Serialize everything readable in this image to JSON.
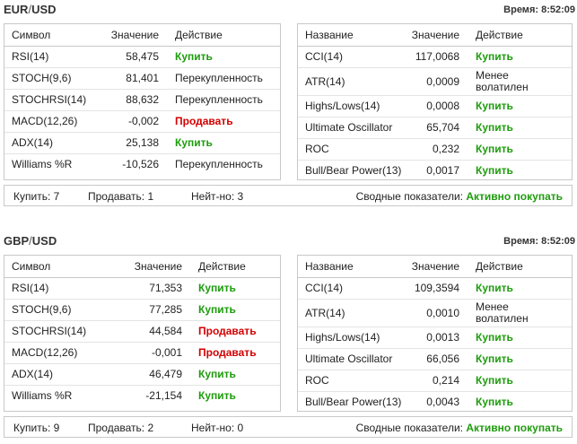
{
  "blocks": [
    {
      "pair_base": "EUR",
      "pair_quote": "USD",
      "time_label": "Время: 8:52:09",
      "left_headers": [
        "Символ",
        "Значение",
        "Действие"
      ],
      "left_rows": [
        {
          "name": "RSI(14)",
          "value": "58,475",
          "action": "Купить",
          "kind": "buy"
        },
        {
          "name": "STOCH(9,6)",
          "value": "81,401",
          "action": "Перекупленность",
          "kind": "neutral"
        },
        {
          "name": "STOCHRSI(14)",
          "value": "88,632",
          "action": "Перекупленность",
          "kind": "neutral"
        },
        {
          "name": "MACD(12,26)",
          "value": "-0,002",
          "action": "Продавать",
          "kind": "sell"
        },
        {
          "name": "ADX(14)",
          "value": "25,138",
          "action": "Купить",
          "kind": "buy"
        },
        {
          "name": "Williams %R",
          "value": "-10,526",
          "action": "Перекупленность",
          "kind": "neutral"
        }
      ],
      "right_headers": [
        "Название",
        "Значение",
        "Действие"
      ],
      "right_rows": [
        {
          "name": "CCI(14)",
          "value": "117,0068",
          "action": "Купить",
          "kind": "buy"
        },
        {
          "name": "ATR(14)",
          "value": "0,0009",
          "action_line1": "Менее",
          "action_line2": "волатилен",
          "kind": "lowvol"
        },
        {
          "name": "Highs/Lows(14)",
          "value": "0,0008",
          "action": "Купить",
          "kind": "buy"
        },
        {
          "name": "Ultimate Oscillator",
          "value": "65,704",
          "action": "Купить",
          "kind": "buy"
        },
        {
          "name": "ROC",
          "value": "0,232",
          "action": "Купить",
          "kind": "buy"
        },
        {
          "name": "Bull/Bear Power(13)",
          "value": "0,0017",
          "action": "Купить",
          "kind": "buy"
        }
      ],
      "summary": {
        "buy": "Купить: 7",
        "sell": "Продавать: 1",
        "neutral": "Нейт-но: 3",
        "total_label": "Сводные показатели:",
        "total_value": "Активно покупать"
      }
    },
    {
      "pair_base": "GBP",
      "pair_quote": "USD",
      "time_label": "Время: 8:52:09",
      "left_headers": [
        "Символ",
        "Значение",
        "Действие"
      ],
      "left_rows": [
        {
          "name": "RSI(14)",
          "value": "71,353",
          "action": "Купить",
          "kind": "buy"
        },
        {
          "name": "STOCH(9,6)",
          "value": "77,285",
          "action": "Купить",
          "kind": "buy"
        },
        {
          "name": "STOCHRSI(14)",
          "value": "44,584",
          "action": "Продавать",
          "kind": "sell"
        },
        {
          "name": "MACD(12,26)",
          "value": "-0,001",
          "action": "Продавать",
          "kind": "sell"
        },
        {
          "name": "ADX(14)",
          "value": "46,479",
          "action": "Купить",
          "kind": "buy"
        },
        {
          "name": "Williams %R",
          "value": "-21,154",
          "action": "Купить",
          "kind": "buy"
        }
      ],
      "right_headers": [
        "Название",
        "Значение",
        "Действие"
      ],
      "right_rows": [
        {
          "name": "CCI(14)",
          "value": "109,3594",
          "action": "Купить",
          "kind": "buy"
        },
        {
          "name": "ATR(14)",
          "value": "0,0010",
          "action_line1": "Менее",
          "action_line2": "волатилен",
          "kind": "lowvol"
        },
        {
          "name": "Highs/Lows(14)",
          "value": "0,0013",
          "action": "Купить",
          "kind": "buy"
        },
        {
          "name": "Ultimate Oscillator",
          "value": "66,056",
          "action": "Купить",
          "kind": "buy"
        },
        {
          "name": "ROC",
          "value": "0,214",
          "action": "Купить",
          "kind": "buy"
        },
        {
          "name": "Bull/Bear Power(13)",
          "value": "0,0043",
          "action": "Купить",
          "kind": "buy"
        }
      ],
      "summary": {
        "buy": "Купить: 9",
        "sell": "Продавать: 2",
        "neutral": "Нейт-но: 0",
        "total_label": "Сводные показатели:",
        "total_value": "Активно покупать"
      }
    }
  ],
  "colors": {
    "buy": "#1e9c0d",
    "sell": "#d40000",
    "border": "#c8c8c8"
  }
}
